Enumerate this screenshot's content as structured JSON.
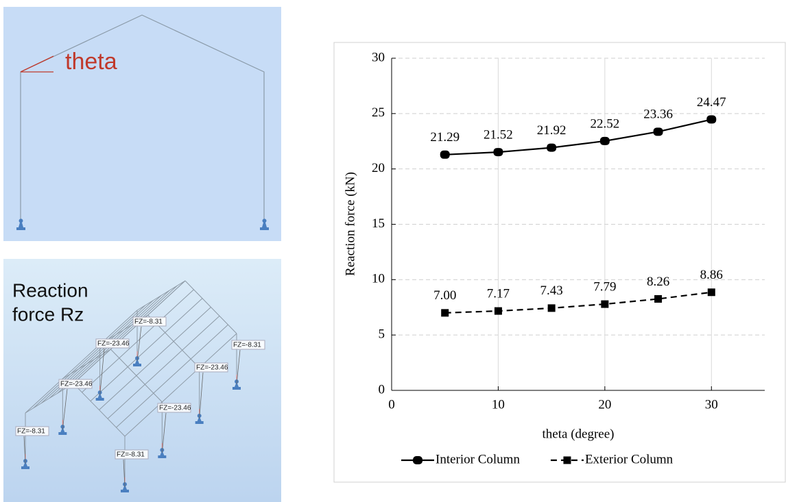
{
  "frame_sketch": {
    "label": "theta"
  },
  "reaction_sketch": {
    "title_lines": [
      "Reaction",
      "force Rz"
    ],
    "support_labels": [
      "FZ=-8.31",
      "FZ=-23.46",
      "FZ=-8.31",
      "FZ=-23.46",
      "FZ=-23.46",
      "FZ=-23.46",
      "FZ=-8.31",
      "FZ=-8.31"
    ]
  },
  "chart_data": {
    "type": "line",
    "x_label": "theta (degree)",
    "y_label": "Reaction force (kN)",
    "x": [
      5,
      10,
      15,
      20,
      25,
      30
    ],
    "series": [
      {
        "name": "Interior Column",
        "color": "#000000",
        "marker": "circle",
        "dashed": false,
        "values": [
          21.29,
          21.52,
          21.92,
          22.52,
          23.36,
          24.47
        ]
      },
      {
        "name": "Exterior Column",
        "color": "#000000",
        "marker": "square",
        "dashed": true,
        "values": [
          7.0,
          7.17,
          7.43,
          7.79,
          8.26,
          8.86
        ],
        "value_labels": [
          "7.00",
          "7.17",
          "7.43",
          "7.79",
          "8.26",
          "8.86"
        ]
      }
    ],
    "xlim": [
      0,
      35
    ],
    "xticks": [
      0,
      10,
      20,
      30
    ],
    "ylim": [
      0,
      30
    ],
    "yticks": [
      0,
      5,
      10,
      15,
      20,
      25,
      30
    ],
    "grid": true,
    "legend": "bottom"
  }
}
